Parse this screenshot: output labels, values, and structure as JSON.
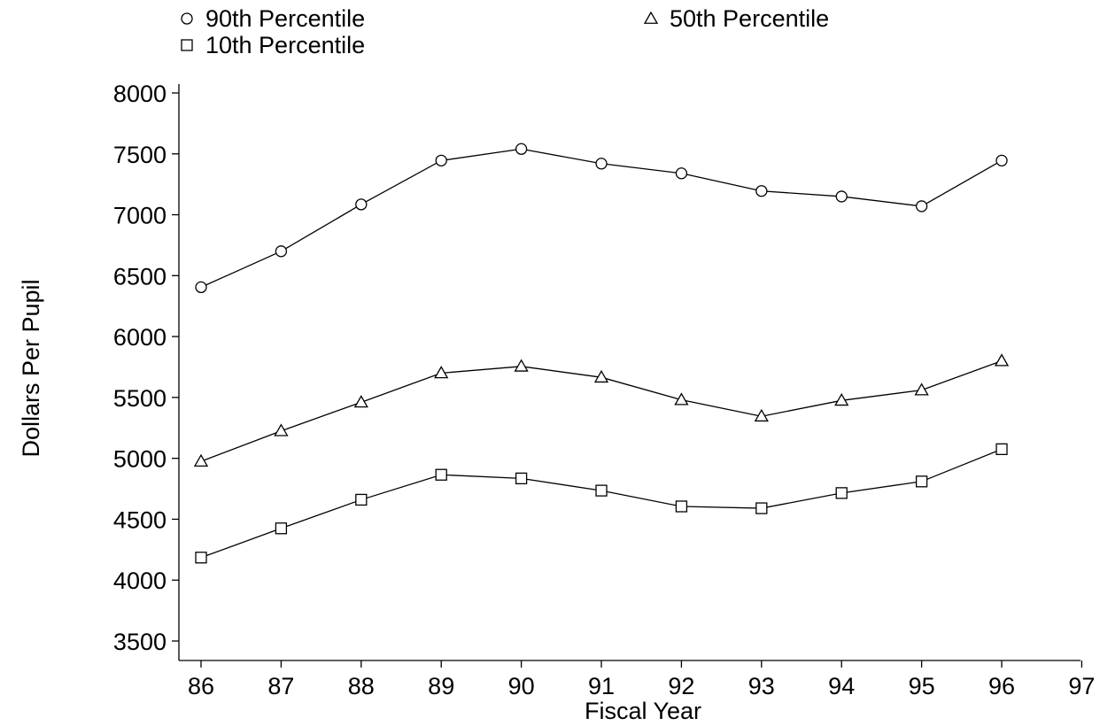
{
  "chart_data": {
    "type": "line",
    "title": "",
    "xlabel": "Fiscal Year",
    "ylabel": "Dollars Per Pupil",
    "x_ticks": [
      "86",
      "87",
      "88",
      "89",
      "90",
      "91",
      "92",
      "93",
      "94",
      "95",
      "96",
      "97"
    ],
    "y_ticks": [
      "3500",
      "4000",
      "4500",
      "5000",
      "5500",
      "6000",
      "6500",
      "7000",
      "7500",
      "8000"
    ],
    "xlim": [
      86,
      97
    ],
    "ylim": [
      3500,
      8000
    ],
    "grid": false,
    "legend_position": "top",
    "x": [
      86,
      87,
      88,
      89,
      90,
      91,
      92,
      93,
      94,
      95,
      96
    ],
    "series": [
      {
        "name": "90th Percentile",
        "marker": "circle",
        "values": [
          6405,
          6700,
          7085,
          7445,
          7540,
          7420,
          7340,
          7195,
          7150,
          7070,
          7445
        ]
      },
      {
        "name": "50th Percentile",
        "marker": "triangle",
        "values": [
          4975,
          5225,
          5460,
          5700,
          5755,
          5665,
          5480,
          5345,
          5475,
          5560,
          5800
        ]
      },
      {
        "name": "10th Percentile",
        "marker": "square",
        "values": [
          4185,
          4425,
          4660,
          4865,
          4835,
          4735,
          4605,
          4590,
          4715,
          4810,
          5075
        ]
      }
    ]
  }
}
